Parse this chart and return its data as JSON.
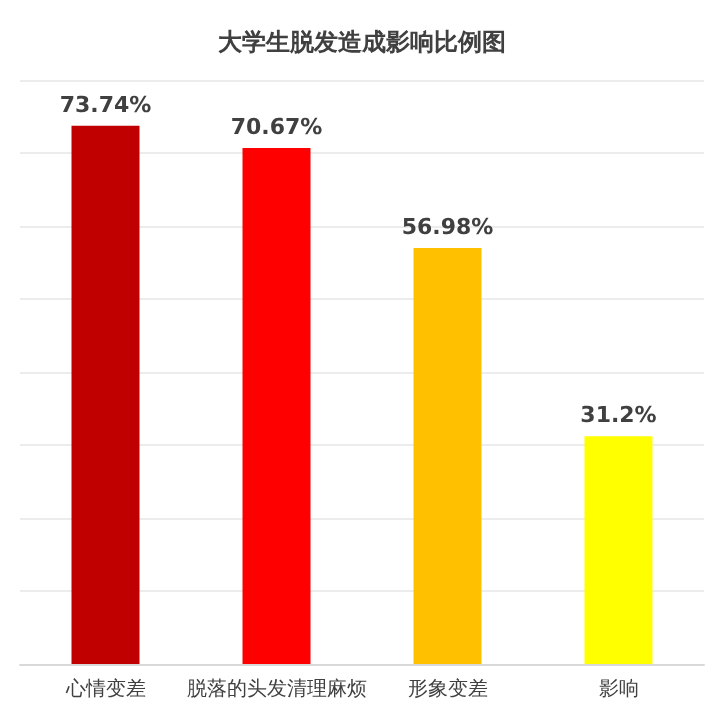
{
  "chart_data": {
    "type": "bar",
    "title": "大学生脱发造成影响比例图",
    "categories": [
      "心情变差",
      "脱落的头发清理麻烦",
      "形象变差",
      "影响"
    ],
    "values": [
      73.74,
      70.67,
      56.98,
      31.2
    ],
    "colors": [
      "#c00000",
      "#ff0000",
      "#ffc000",
      "#ffff00"
    ],
    "value_labels": [
      "73.74%",
      "70.67%",
      "56.98%",
      "31.2%"
    ],
    "ylim": [
      0,
      80
    ],
    "yticks": [
      {
        "value": 0,
        "label": null
      },
      {
        "value": 10,
        "label": null
      },
      {
        "value": 20,
        "label": null
      },
      {
        "value": 30,
        "label": null
      },
      {
        "value": 40,
        "label": null
      },
      {
        "value": 50,
        "label": null
      },
      {
        "value": 60,
        "label": null
      },
      {
        "value": 70,
        "label": null
      },
      {
        "value": 80,
        "label": null
      }
    ],
    "tick_labels": "x",
    "grid": "y"
  }
}
